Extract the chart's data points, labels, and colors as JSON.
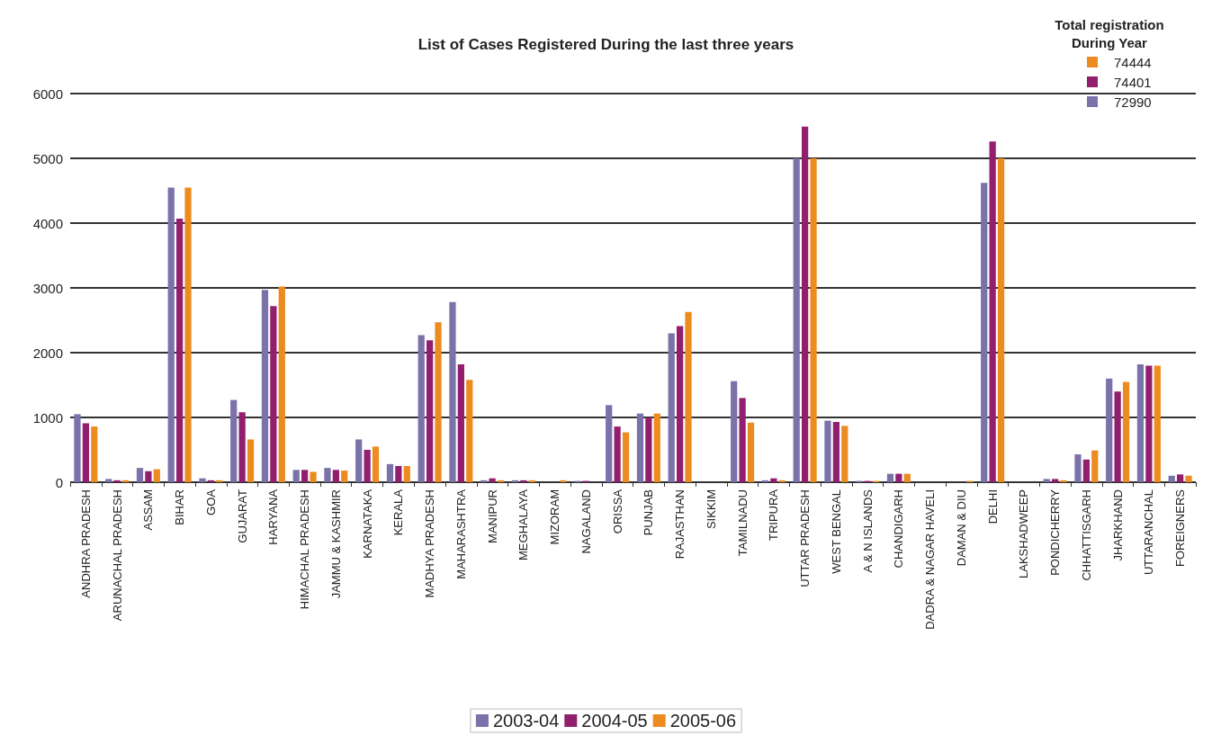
{
  "chart_data": {
    "type": "bar",
    "title": "List of Cases Registered During the last three years",
    "categories": [
      "ANDHRA PRADESH",
      "ARUNACHAL PRADESH",
      "ASSAM",
      "BIHAR",
      "GOA",
      "GUJARAT",
      "HARYANA",
      "HIMACHAL PRADESH",
      "JAMMU & KASHMIR",
      "KARNATAKA",
      "KERALA",
      "MADHYA PRADESH",
      "MAHARASHTRA",
      "MANIPUR",
      "MEGHALAYA",
      "MIZORAM",
      "NAGALAND",
      "ORISSA",
      "PUNJAB",
      "RAJASTHAN",
      "SIKKIM",
      "TAMILNADU",
      "TRIPURA",
      "UTTAR PRADESH",
      "WEST BENGAL",
      "A & N ISLANDS",
      "CHANDIGARH",
      "DADRA & NAGAR HAVELI",
      "DAMAN & DIU",
      "DELHI",
      "LAKSHADWEEP",
      "PONDICHERRY",
      "CHHATTISGARH",
      "JHARKHAND",
      "UTTARANCHAL",
      "FOREIGNERS"
    ],
    "series": [
      {
        "name": "2003-04",
        "color": "#7b72aa",
        "values": [
          1050,
          50,
          220,
          4550,
          60,
          1270,
          2970,
          190,
          220,
          660,
          280,
          2270,
          2780,
          30,
          30,
          0,
          20,
          1190,
          1060,
          2300,
          0,
          1560,
          30,
          5000,
          950,
          20,
          130,
          0,
          0,
          4620,
          0,
          50,
          430,
          1600,
          1820,
          100
        ]
      },
      {
        "name": "2004-05",
        "color": "#921f6e",
        "values": [
          910,
          30,
          170,
          4070,
          30,
          1080,
          2720,
          190,
          190,
          500,
          250,
          2190,
          1820,
          60,
          30,
          0,
          20,
          860,
          1000,
          2410,
          0,
          1300,
          60,
          5490,
          930,
          20,
          130,
          0,
          0,
          5260,
          0,
          50,
          350,
          1400,
          1800,
          120
        ]
      },
      {
        "name": "2005-06",
        "color": "#ec8b1f",
        "values": [
          860,
          30,
          200,
          4550,
          30,
          660,
          3020,
          160,
          180,
          550,
          250,
          2470,
          1580,
          30,
          30,
          30,
          0,
          770,
          1060,
          2630,
          0,
          920,
          30,
          5000,
          870,
          20,
          130,
          0,
          20,
          5000,
          0,
          30,
          490,
          1550,
          1800,
          100
        ]
      }
    ],
    "ylim": [
      0,
      6000
    ],
    "yticks": [
      0,
      1000,
      2000,
      3000,
      4000,
      5000,
      6000
    ],
    "grid": "y",
    "legend": "bottom",
    "annotations": [
      "Total registration During Year",
      "74444",
      "74401",
      "72990"
    ]
  }
}
